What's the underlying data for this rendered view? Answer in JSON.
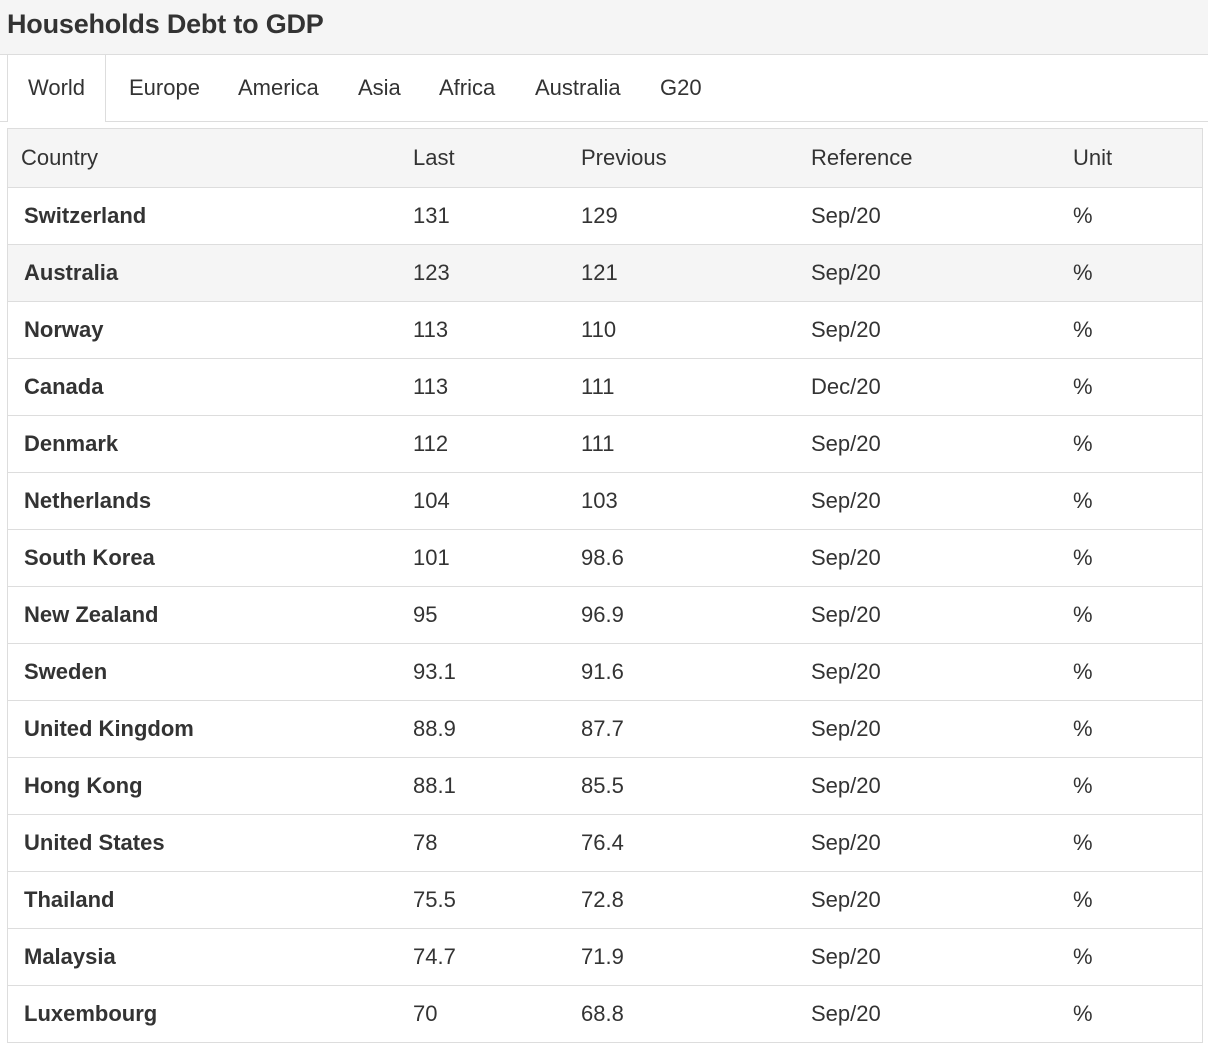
{
  "page": {
    "title": "Households Debt to GDP"
  },
  "tabs": [
    {
      "label": "World",
      "active": true
    },
    {
      "label": "Europe",
      "active": false
    },
    {
      "label": "America",
      "active": false
    },
    {
      "label": "Asia",
      "active": false
    },
    {
      "label": "Africa",
      "active": false
    },
    {
      "label": "Australia",
      "active": false
    },
    {
      "label": "G20",
      "active": false
    }
  ],
  "table": {
    "headers": [
      "Country",
      "Last",
      "Previous",
      "Reference",
      "Unit"
    ],
    "rows": [
      {
        "country": "Switzerland",
        "last": "131",
        "previous": "129",
        "reference": "Sep/20",
        "unit": "%"
      },
      {
        "country": "Australia",
        "last": "123",
        "previous": "121",
        "reference": "Sep/20",
        "unit": "%"
      },
      {
        "country": "Norway",
        "last": "113",
        "previous": "110",
        "reference": "Sep/20",
        "unit": "%"
      },
      {
        "country": "Canada",
        "last": "113",
        "previous": "111",
        "reference": "Dec/20",
        "unit": "%"
      },
      {
        "country": "Denmark",
        "last": "112",
        "previous": "111",
        "reference": "Sep/20",
        "unit": "%"
      },
      {
        "country": "Netherlands",
        "last": "104",
        "previous": "103",
        "reference": "Sep/20",
        "unit": "%"
      },
      {
        "country": "South Korea",
        "last": "101",
        "previous": "98.6",
        "reference": "Sep/20",
        "unit": "%"
      },
      {
        "country": "New Zealand",
        "last": "95",
        "previous": "96.9",
        "reference": "Sep/20",
        "unit": "%"
      },
      {
        "country": "Sweden",
        "last": "93.1",
        "previous": "91.6",
        "reference": "Sep/20",
        "unit": "%"
      },
      {
        "country": "United Kingdom",
        "last": "88.9",
        "previous": "87.7",
        "reference": "Sep/20",
        "unit": "%"
      },
      {
        "country": "Hong Kong",
        "last": "88.1",
        "previous": "85.5",
        "reference": "Sep/20",
        "unit": "%"
      },
      {
        "country": "United States",
        "last": "78",
        "previous": "76.4",
        "reference": "Sep/20",
        "unit": "%"
      },
      {
        "country": "Thailand",
        "last": "75.5",
        "previous": "72.8",
        "reference": "Sep/20",
        "unit": "%"
      },
      {
        "country": "Malaysia",
        "last": "74.7",
        "previous": "71.9",
        "reference": "Sep/20",
        "unit": "%"
      },
      {
        "country": "Luxembourg",
        "last": "70",
        "previous": "68.8",
        "reference": "Sep/20",
        "unit": "%"
      }
    ]
  },
  "colors": {
    "header_bg": "#f5f5f5",
    "border": "#dddddd",
    "text": "#333333",
    "hover_row_bg": "#f5f5f5"
  }
}
